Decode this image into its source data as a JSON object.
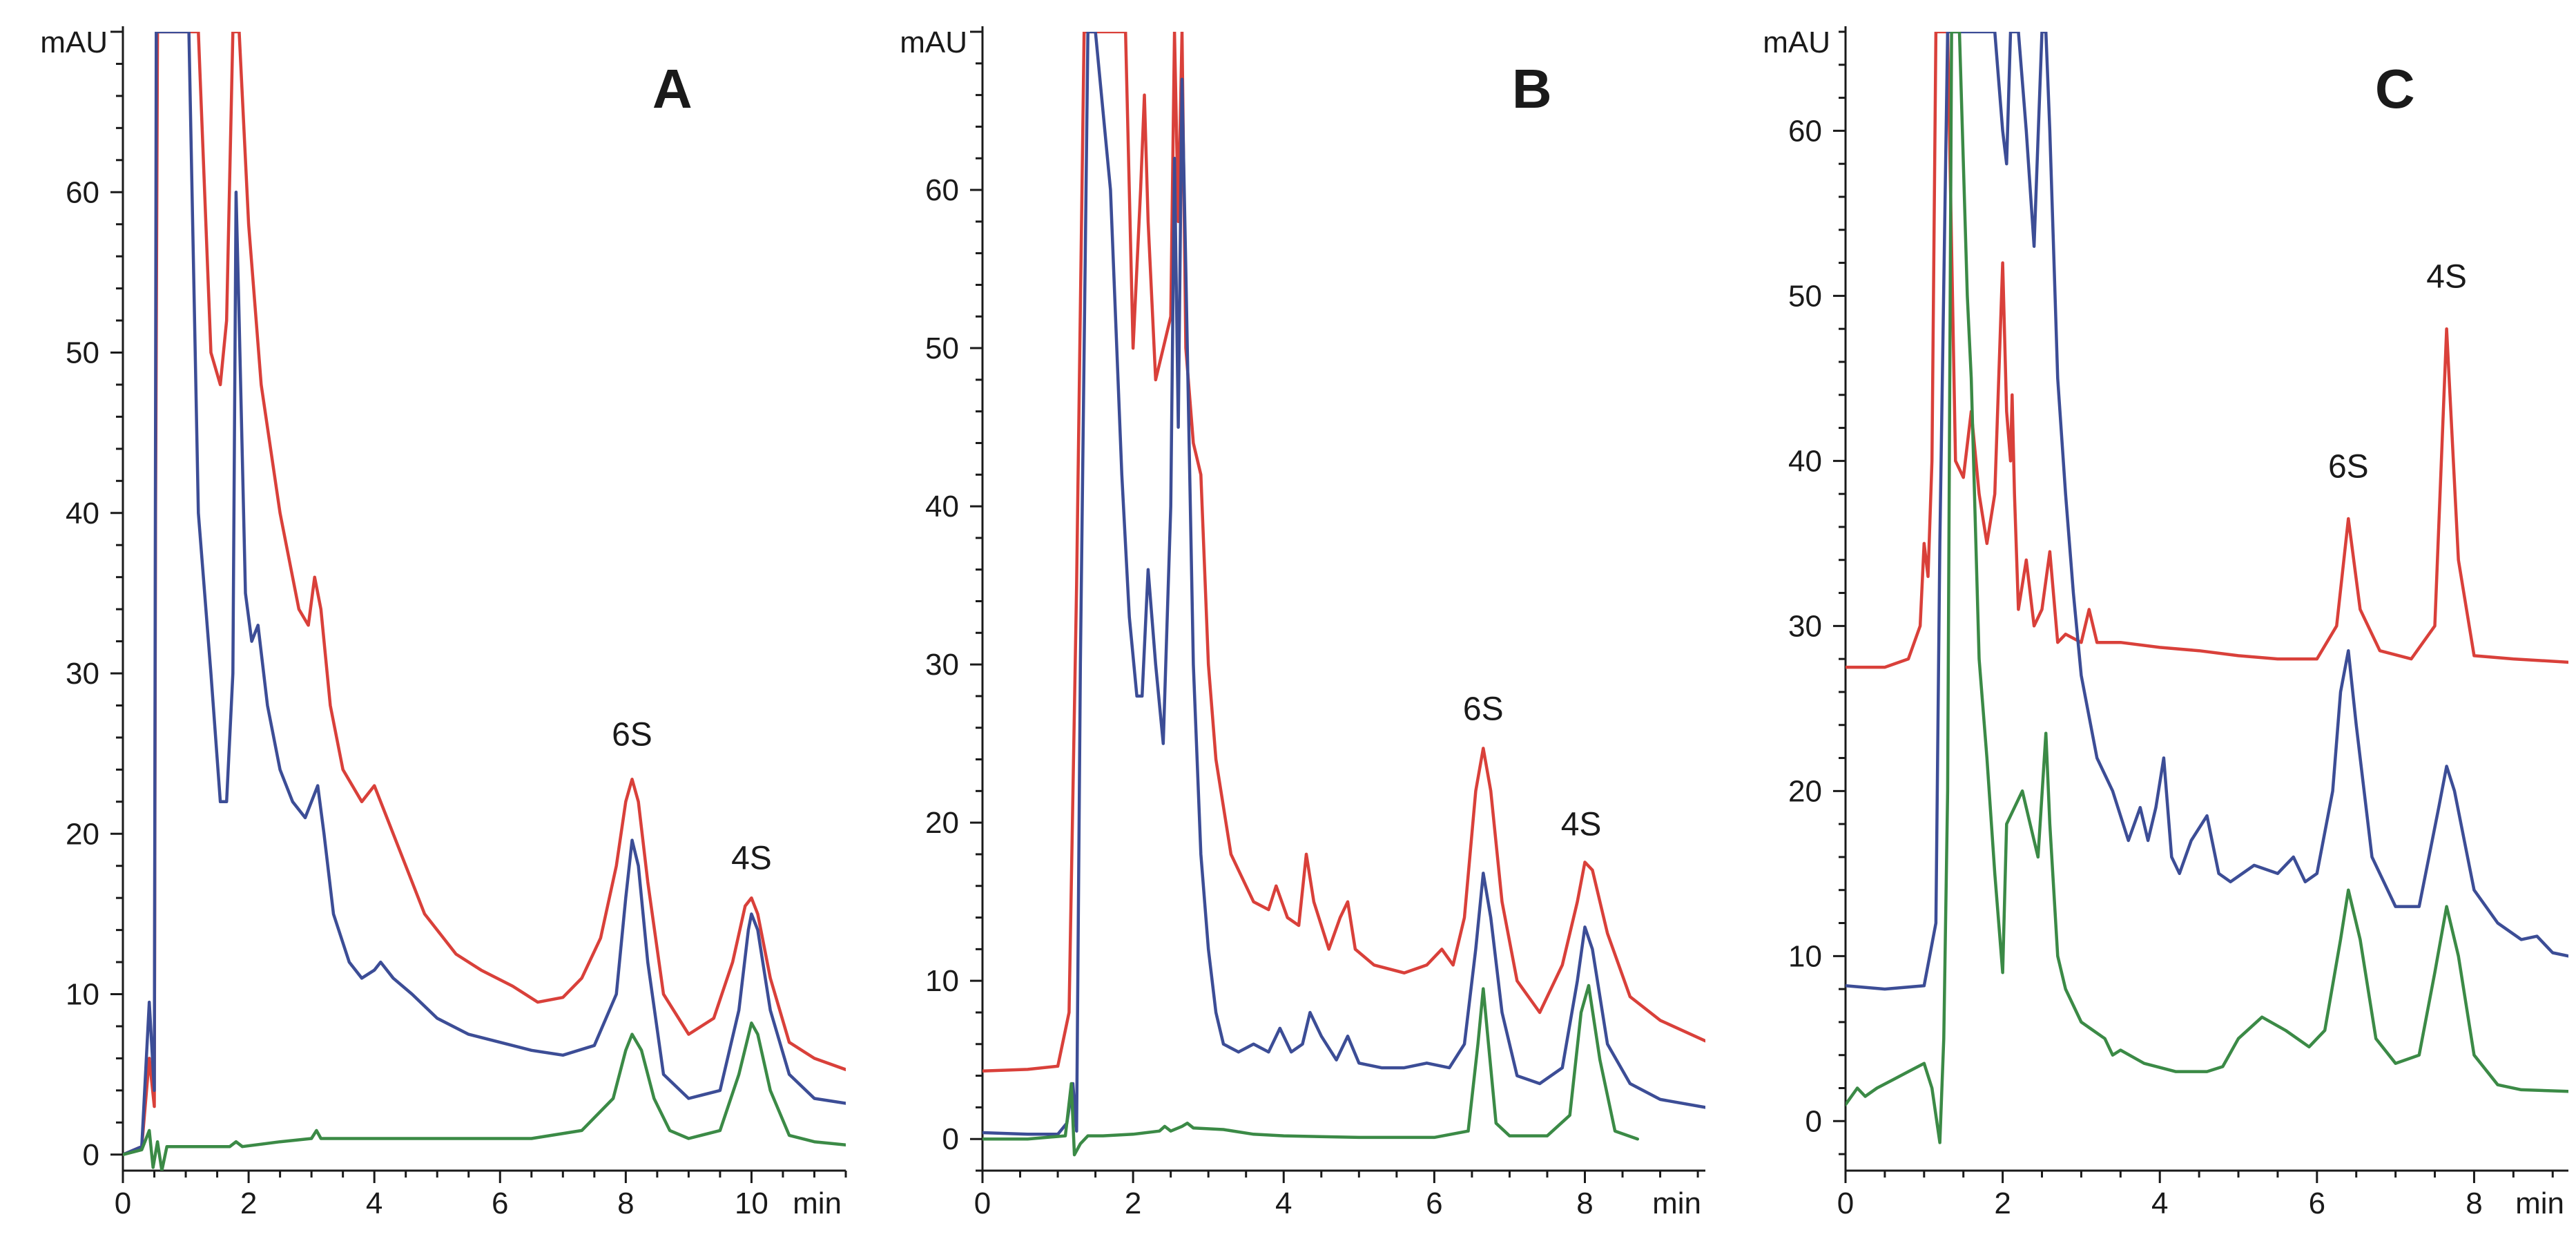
{
  "chart_data": [
    {
      "type": "line",
      "panel_label": "A",
      "y_unit": "mAU",
      "x_unit": "min",
      "xlim": [
        0,
        11.5
      ],
      "ylim": [
        -1,
        70
      ],
      "x_ticks": [
        0,
        2,
        4,
        6,
        8,
        10
      ],
      "y_ticks": [
        0,
        10,
        20,
        30,
        40,
        50,
        60
      ],
      "annotations": [
        {
          "text": "6S",
          "x": 8.1,
          "y": 25.5
        },
        {
          "text": "4S",
          "x": 10.0,
          "y": 17.8
        }
      ],
      "series": [
        {
          "name": "red",
          "color": "#d9403a",
          "x": [
            0,
            0.3,
            0.42,
            0.5,
            0.52,
            0.55,
            0.6,
            0.75,
            1.0,
            1.2,
            1.4,
            1.55,
            1.65,
            1.75,
            1.8,
            1.85,
            2.0,
            2.2,
            2.5,
            2.8,
            2.95,
            3.05,
            3.15,
            3.3,
            3.5,
            3.8,
            4.0,
            4.2,
            4.5,
            4.8,
            5.0,
            5.3,
            5.7,
            6.2,
            6.6,
            7.0,
            7.3,
            7.6,
            7.85,
            8.0,
            8.1,
            8.2,
            8.35,
            8.6,
            9.0,
            9.4,
            9.7,
            9.9,
            10.0,
            10.1,
            10.3,
            10.6,
            11.0,
            11.5
          ],
          "y": [
            0,
            0.5,
            6,
            3,
            40,
            70,
            70,
            70,
            70,
            70,
            50,
            48,
            52,
            70,
            70,
            70,
            58,
            48,
            40,
            34,
            33,
            36,
            34,
            28,
            24,
            22,
            23,
            21,
            18,
            15,
            14,
            12.5,
            11.5,
            10.5,
            9.5,
            9.8,
            11,
            13.5,
            18,
            22,
            23.4,
            22,
            17,
            10,
            7.5,
            8.5,
            12,
            15.5,
            16,
            15,
            11,
            7,
            6,
            5.3
          ]
        },
        {
          "name": "blue",
          "color": "#3c4d96",
          "x": [
            0,
            0.3,
            0.42,
            0.5,
            0.53,
            0.57,
            0.6,
            0.75,
            0.9,
            1.05,
            1.2,
            1.4,
            1.55,
            1.65,
            1.75,
            1.8,
            1.85,
            1.95,
            2.05,
            2.15,
            2.3,
            2.5,
            2.7,
            2.9,
            3.0,
            3.1,
            3.2,
            3.35,
            3.6,
            3.8,
            4.0,
            4.1,
            4.3,
            4.6,
            5.0,
            5.5,
            6.0,
            6.5,
            7.0,
            7.5,
            7.85,
            8.0,
            8.1,
            8.2,
            8.35,
            8.6,
            9.0,
            9.5,
            9.8,
            9.95,
            10.0,
            10.1,
            10.3,
            10.6,
            11.0,
            11.5
          ],
          "y": [
            0,
            0.5,
            9.5,
            4,
            70,
            70,
            70,
            70,
            70,
            70,
            40,
            30,
            22,
            22,
            30,
            60,
            52,
            35,
            32,
            33,
            28,
            24,
            22,
            21,
            22,
            23,
            20,
            15,
            12,
            11,
            11.5,
            12,
            11,
            10,
            8.5,
            7.5,
            7,
            6.5,
            6.2,
            6.8,
            10,
            16,
            19.6,
            18,
            12,
            5,
            3.5,
            4,
            9,
            14,
            15,
            14,
            9,
            5,
            3.5,
            3.2
          ]
        },
        {
          "name": "green",
          "color": "#3b8a46",
          "x": [
            0,
            0.3,
            0.42,
            0.48,
            0.55,
            0.62,
            0.7,
            0.85,
            1.2,
            1.7,
            1.8,
            1.9,
            2.5,
            3.0,
            3.08,
            3.15,
            3.5,
            5.0,
            6.5,
            7.3,
            7.8,
            8.0,
            8.1,
            8.25,
            8.45,
            8.7,
            9.0,
            9.5,
            9.8,
            10.0,
            10.1,
            10.3,
            10.6,
            11.0,
            11.5
          ],
          "y": [
            0,
            0.3,
            1.5,
            -0.8,
            0.8,
            -1,
            0.5,
            0.5,
            0.5,
            0.5,
            0.8,
            0.5,
            0.8,
            1.0,
            1.5,
            1.0,
            1.0,
            1.0,
            1.0,
            1.5,
            3.5,
            6.5,
            7.5,
            6.5,
            3.5,
            1.5,
            1.0,
            1.5,
            5,
            8.2,
            7.5,
            4,
            1.2,
            0.8,
            0.6
          ]
        }
      ]
    },
    {
      "type": "line",
      "panel_label": "B",
      "y_unit": "mAU",
      "x_unit": "min",
      "xlim": [
        0,
        9.6
      ],
      "ylim": [
        -2,
        70
      ],
      "x_ticks": [
        0,
        2,
        4,
        6,
        8
      ],
      "y_ticks": [
        0,
        10,
        20,
        30,
        40,
        50,
        60
      ],
      "annotations": [
        {
          "text": "6S",
          "x": 6.65,
          "y": 26.5
        },
        {
          "text": "4S",
          "x": 7.95,
          "y": 19.2
        }
      ],
      "series": [
        {
          "name": "red",
          "color": "#d9403a",
          "x": [
            0,
            0.6,
            1.0,
            1.15,
            1.25,
            1.35,
            1.5,
            1.7,
            1.9,
            2.0,
            2.1,
            2.15,
            2.2,
            2.3,
            2.4,
            2.5,
            2.55,
            2.6,
            2.65,
            2.7,
            2.8,
            2.9,
            3.0,
            3.1,
            3.3,
            3.6,
            3.8,
            3.9,
            4.05,
            4.2,
            4.3,
            4.4,
            4.6,
            4.75,
            4.85,
            4.95,
            5.2,
            5.6,
            5.9,
            6.1,
            6.25,
            6.4,
            6.55,
            6.65,
            6.75,
            6.9,
            7.1,
            7.4,
            7.7,
            7.9,
            8.0,
            8.1,
            8.3,
            8.6,
            9.0,
            9.6
          ],
          "y": [
            4.3,
            4.4,
            4.6,
            8,
            35,
            70,
            70,
            70,
            70,
            50,
            60,
            66,
            58,
            48,
            50,
            52,
            70,
            58,
            70,
            50,
            44,
            42,
            30,
            24,
            18,
            15,
            14.5,
            16,
            14,
            13.5,
            18,
            15,
            12,
            14,
            15,
            12,
            11,
            10.5,
            11,
            12,
            11,
            14,
            22,
            24.7,
            22,
            15,
            10,
            8,
            11,
            15,
            17.5,
            17,
            13,
            9,
            7.5,
            6.2
          ]
        },
        {
          "name": "blue",
          "color": "#3c4d96",
          "x": [
            0,
            0.6,
            1.0,
            1.12,
            1.2,
            1.25,
            1.3,
            1.4,
            1.5,
            1.7,
            1.85,
            1.95,
            2.05,
            2.12,
            2.2,
            2.3,
            2.4,
            2.5,
            2.55,
            2.6,
            2.65,
            2.7,
            2.8,
            2.9,
            3.0,
            3.1,
            3.2,
            3.4,
            3.6,
            3.8,
            3.95,
            4.1,
            4.25,
            4.35,
            4.5,
            4.7,
            4.85,
            5.0,
            5.3,
            5.6,
            5.9,
            6.2,
            6.4,
            6.55,
            6.65,
            6.75,
            6.9,
            7.1,
            7.4,
            7.7,
            7.9,
            8.0,
            8.1,
            8.3,
            8.6,
            9.0,
            9.6
          ],
          "y": [
            0.4,
            0.3,
            0.3,
            1.0,
            3.5,
            0.5,
            30,
            70,
            70,
            60,
            42,
            33,
            28,
            28,
            36,
            30,
            25,
            40,
            62,
            45,
            67,
            55,
            30,
            18,
            12,
            8,
            6,
            5.5,
            6.0,
            5.5,
            7,
            5.5,
            6.0,
            8,
            6.5,
            5.0,
            6.5,
            4.8,
            4.5,
            4.5,
            4.8,
            4.5,
            6,
            12,
            16.8,
            14,
            8,
            4,
            3.5,
            4.5,
            10,
            13.4,
            12,
            6,
            3.5,
            2.5,
            2.0
          ]
        },
        {
          "name": "green",
          "color": "#3b8a46",
          "x": [
            0,
            0.6,
            1.1,
            1.18,
            1.22,
            1.3,
            1.4,
            1.6,
            2.0,
            2.35,
            2.42,
            2.5,
            2.65,
            2.72,
            2.8,
            3.2,
            3.6,
            4.0,
            5.0,
            6.0,
            6.45,
            6.58,
            6.65,
            6.72,
            6.82,
            7.0,
            7.5,
            7.8,
            7.95,
            8.05,
            8.2,
            8.4,
            8.7
          ],
          "y": [
            0,
            0,
            0.2,
            3.5,
            -1.0,
            -0.3,
            0.2,
            0.2,
            0.3,
            0.5,
            0.8,
            0.5,
            0.8,
            1.0,
            0.7,
            0.6,
            0.3,
            0.2,
            0.1,
            0.1,
            0.5,
            6,
            9.5,
            6,
            1.0,
            0.2,
            0.2,
            1.5,
            8,
            9.7,
            5,
            0.5,
            0
          ]
        }
      ]
    },
    {
      "type": "line",
      "panel_label": "C",
      "y_unit": "mAU",
      "x_unit": "min",
      "xlim": [
        0,
        9.2
      ],
      "ylim": [
        -3,
        66
      ],
      "x_ticks": [
        0,
        2,
        4,
        6,
        8
      ],
      "y_ticks": [
        0,
        10,
        20,
        30,
        40,
        50,
        60
      ],
      "annotations": [
        {
          "text": "6S",
          "x": 6.4,
          "y": 39
        },
        {
          "text": "4S",
          "x": 7.65,
          "y": 50.5
        }
      ],
      "series": [
        {
          "name": "red",
          "color": "#d9403a",
          "x": [
            0,
            0.5,
            0.8,
            0.95,
            1.0,
            1.05,
            1.1,
            1.15,
            1.2,
            1.3,
            1.4,
            1.5,
            1.6,
            1.7,
            1.8,
            1.9,
            1.95,
            2.0,
            2.05,
            2.1,
            2.12,
            2.15,
            2.2,
            2.3,
            2.4,
            2.5,
            2.6,
            2.7,
            2.8,
            3.0,
            3.1,
            3.2,
            3.5,
            4.0,
            4.5,
            5.0,
            5.5,
            6.0,
            6.25,
            6.4,
            6.55,
            6.8,
            7.2,
            7.5,
            7.65,
            7.8,
            8.0,
            8.5,
            9.2
          ],
          "y": [
            27.5,
            27.5,
            28,
            30,
            35,
            33,
            40,
            66,
            66,
            66,
            40,
            39,
            43,
            38,
            35,
            38,
            45,
            52,
            43,
            40,
            44,
            38,
            31,
            34,
            30,
            31,
            34.5,
            29,
            29.5,
            29,
            31,
            29,
            29,
            28.7,
            28.5,
            28.2,
            28,
            28,
            30,
            36.5,
            31,
            28.5,
            28,
            30,
            48,
            34,
            28.2,
            28,
            27.8
          ]
        },
        {
          "name": "blue",
          "color": "#3c4d96",
          "x": [
            0,
            0.5,
            1.0,
            1.15,
            1.2,
            1.3,
            1.5,
            1.7,
            1.9,
            2.0,
            2.05,
            2.1,
            2.2,
            2.3,
            2.4,
            2.5,
            2.55,
            2.6,
            2.7,
            2.8,
            2.9,
            3.0,
            3.2,
            3.4,
            3.6,
            3.75,
            3.85,
            3.95,
            4.05,
            4.15,
            4.25,
            4.4,
            4.6,
            4.75,
            4.9,
            5.2,
            5.5,
            5.7,
            5.85,
            6.0,
            6.2,
            6.3,
            6.4,
            6.5,
            6.7,
            7.0,
            7.3,
            7.55,
            7.65,
            7.75,
            8.0,
            8.3,
            8.6,
            8.8,
            9.0,
            9.2
          ],
          "y": [
            8.2,
            8.0,
            8.2,
            12,
            35,
            66,
            66,
            66,
            66,
            60,
            58,
            66,
            66,
            60,
            53,
            66,
            66,
            60,
            45,
            38,
            32,
            27,
            22,
            20,
            17,
            19,
            17,
            19,
            22,
            16,
            15,
            17,
            18.5,
            15,
            14.5,
            15.5,
            15,
            16,
            14.5,
            15,
            20,
            26,
            28.5,
            24,
            16,
            13,
            13,
            19,
            21.5,
            20,
            14,
            12,
            11,
            11.2,
            10.2,
            10
          ]
        },
        {
          "name": "green",
          "color": "#3b8a46",
          "x": [
            0,
            0.15,
            0.25,
            0.4,
            0.6,
            0.8,
            1.0,
            1.1,
            1.2,
            1.25,
            1.3,
            1.35,
            1.45,
            1.55,
            1.6,
            1.7,
            1.8,
            1.9,
            2.0,
            2.05,
            2.15,
            2.25,
            2.35,
            2.45,
            2.55,
            2.6,
            2.7,
            2.8,
            3.0,
            3.15,
            3.3,
            3.4,
            3.5,
            3.8,
            4.2,
            4.6,
            4.8,
            5.0,
            5.3,
            5.6,
            5.9,
            6.1,
            6.3,
            6.4,
            6.55,
            6.75,
            7.0,
            7.3,
            7.5,
            7.65,
            7.8,
            8.0,
            8.3,
            8.6,
            9.2
          ],
          "y": [
            1.0,
            2,
            1.5,
            2,
            2.5,
            3,
            3.5,
            2,
            -1.3,
            5,
            20,
            66,
            66,
            50,
            45,
            28,
            22,
            15,
            9,
            18,
            19,
            20,
            18,
            16,
            23.5,
            18,
            10,
            8,
            6,
            5.5,
            5,
            4,
            4.3,
            3.5,
            3,
            3,
            3.3,
            5,
            6.3,
            5.5,
            4.5,
            5.5,
            11,
            14,
            11,
            5,
            3.5,
            4,
            9,
            13,
            10,
            4,
            2.2,
            1.9,
            1.8
          ]
        }
      ]
    }
  ]
}
